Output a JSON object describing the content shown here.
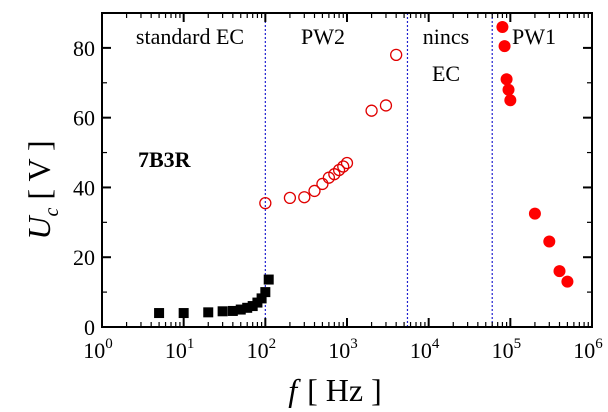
{
  "chart_data": {
    "type": "scatter",
    "x_scale": "log",
    "xlim": [
      1,
      1000000
    ],
    "ylim": [
      0,
      90
    ],
    "grid": false,
    "xlabel_var": "f",
    "xlabel_unit": "[ Hz ]",
    "ylabel_var": "U",
    "ylabel_sub": "c",
    "ylabel_unit": "[ V ]",
    "x_ticks": [
      {
        "value": 1,
        "base": "10",
        "exp": "0"
      },
      {
        "value": 10,
        "base": "10",
        "exp": "1"
      },
      {
        "value": 100,
        "base": "10",
        "exp": "2"
      },
      {
        "value": 1000,
        "base": "10",
        "exp": "3"
      },
      {
        "value": 10000,
        "base": "10",
        "exp": "4"
      },
      {
        "value": 100000,
        "base": "10",
        "exp": "5"
      },
      {
        "value": 1000000,
        "base": "10",
        "exp": "6"
      }
    ],
    "y_ticks": [
      0,
      20,
      40,
      60,
      80
    ],
    "sample_label": "7B3R",
    "regions": [
      {
        "label": "standard EC"
      },
      {
        "label": "PW2"
      },
      {
        "label": "nincs",
        "label2": "EC"
      },
      {
        "label": "PW1"
      }
    ],
    "boundaries": [
      100,
      5500,
      60000
    ],
    "boundary_color": "#1f1fd0",
    "series": [
      {
        "marker": "filled-square",
        "color": "#000000",
        "points": [
          [
            5,
            4.0
          ],
          [
            10,
            4.0
          ],
          [
            20,
            4.2
          ],
          [
            30,
            4.5
          ],
          [
            40,
            4.6
          ],
          [
            50,
            5.0
          ],
          [
            60,
            5.5
          ],
          [
            70,
            6.0
          ],
          [
            80,
            7.0
          ],
          [
            90,
            8.2
          ],
          [
            100,
            10.0
          ],
          [
            110,
            13.6
          ]
        ]
      },
      {
        "marker": "open-circle",
        "color": "#e00000",
        "points": [
          [
            100,
            35.5
          ],
          [
            200,
            37.0
          ],
          [
            300,
            37.2
          ],
          [
            400,
            39.0
          ],
          [
            500,
            41.0
          ],
          [
            600,
            42.8
          ],
          [
            700,
            43.8
          ],
          [
            800,
            45.0
          ],
          [
            900,
            46.0
          ],
          [
            1000,
            47.0
          ],
          [
            2000,
            62.0
          ],
          [
            3000,
            63.5
          ],
          [
            4000,
            78.0
          ]
        ]
      },
      {
        "marker": "filled-circle",
        "color": "#ff0000",
        "points": [
          [
            80000,
            86.0
          ],
          [
            85000,
            80.5
          ],
          [
            90000,
            71.0
          ],
          [
            95000,
            68.0
          ],
          [
            100000,
            65.0
          ],
          [
            200000,
            32.5
          ],
          [
            300000,
            24.5
          ],
          [
            400000,
            16.0
          ],
          [
            500000,
            13.0
          ]
        ]
      }
    ]
  }
}
